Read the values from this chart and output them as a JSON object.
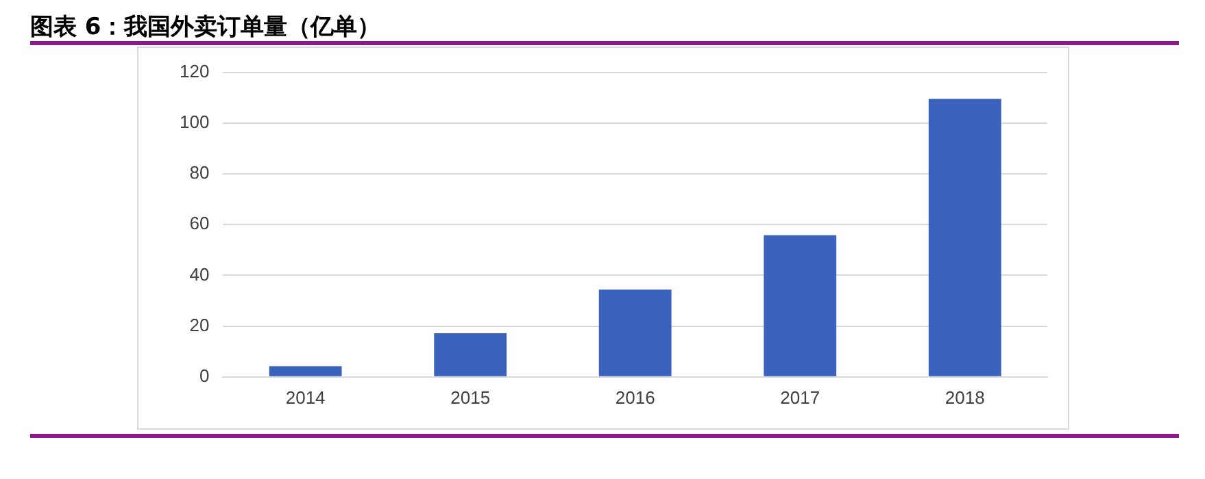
{
  "chart_data": {
    "type": "bar",
    "title": "图表 6：我国外卖订单量（亿单）",
    "categories": [
      "2014",
      "2015",
      "2016",
      "2017",
      "2018"
    ],
    "values": [
      4.2,
      17.2,
      34.4,
      55.8,
      109.5
    ],
    "color": "#3a62bd",
    "ylim": [
      0,
      120
    ],
    "yticks": [
      0,
      20,
      40,
      60,
      80,
      100,
      120
    ],
    "grid": "y",
    "legend": false
  }
}
